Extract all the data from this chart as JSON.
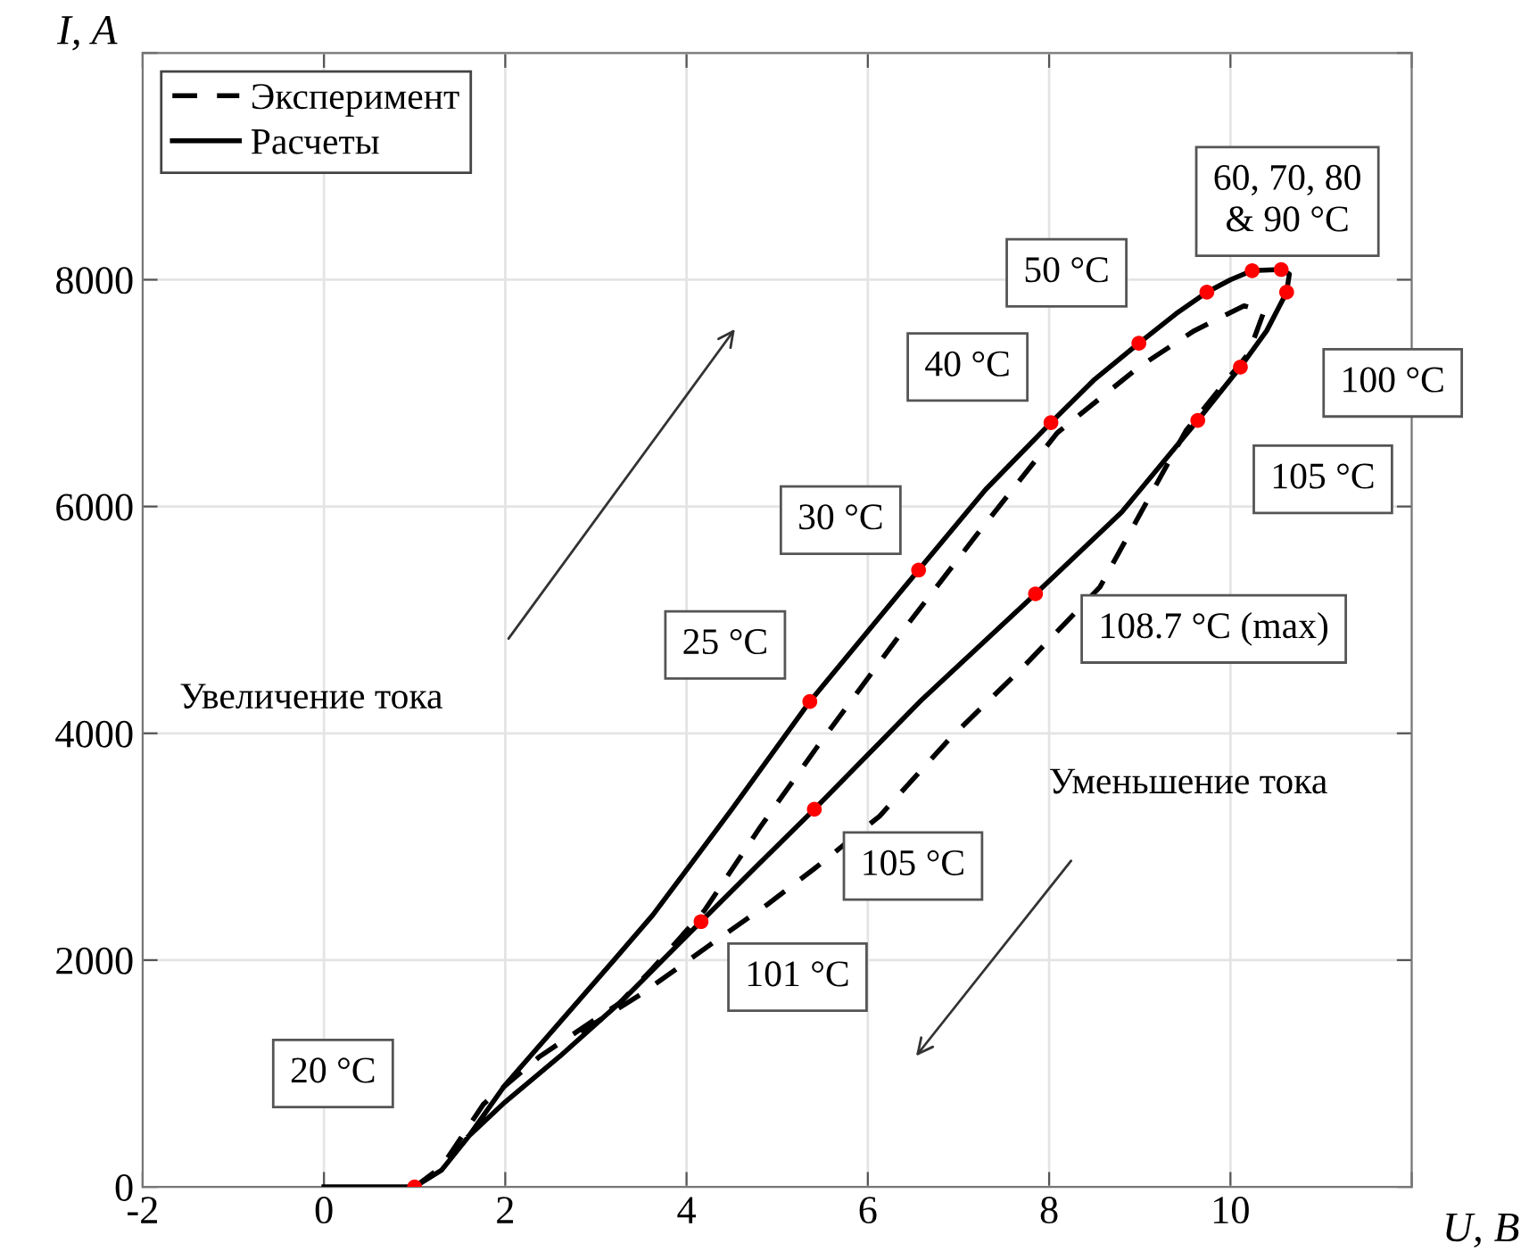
{
  "chart_data": {
    "type": "line",
    "xlabel": "U, B",
    "ylabel": "I, A",
    "xlim": [
      -2,
      12
    ],
    "xticks": [
      -2,
      0,
      2,
      4,
      6,
      8,
      10,
      {
        "value": 12,
        "label": null
      }
    ],
    "ylim": [
      0,
      10000
    ],
    "yticks": [
      0,
      2000,
      4000,
      6000,
      8000,
      {
        "value": 10000,
        "label": null
      }
    ],
    "grid": true,
    "legend": "top left",
    "marker": "none",
    "series": [
      {
        "name": "Эксперимент",
        "line_style": "dashed",
        "color": "#000000",
        "x": [
          1.0,
          1.3,
          1.76,
          2.38,
          3.26,
          3.63,
          4.2,
          4.81,
          5.45,
          6.41,
          7.2,
          8.09,
          8.99,
          9.6,
          10.15,
          10.37,
          10.2,
          9.51,
          8.56,
          7.72,
          6.9,
          6.13,
          5.4,
          4.89,
          4.25,
          3.5,
          2.8
        ],
        "values": [
          0,
          180,
          730,
          1150,
          1620,
          1930,
          2440,
          3170,
          3890,
          4930,
          5750,
          6650,
          7230,
          7550,
          7770,
          7720,
          7350,
          6670,
          5290,
          4590,
          3950,
          3270,
          2800,
          2490,
          2130,
          1700,
          1350
        ]
      },
      {
        "name": "Расчеты",
        "line_style": "solid",
        "color": "#000000",
        "x": [
          0,
          1.0,
          1.3,
          1.6,
          2.0,
          2.6,
          3.2,
          3.63,
          4.5,
          5.36,
          6.0,
          6.56,
          7.3,
          8.02,
          8.5,
          8.99,
          9.4,
          9.74,
          10.0,
          10.24,
          10.56,
          10.65,
          10.62,
          10.4,
          10.11,
          9.64,
          8.8,
          7.85,
          6.6,
          5.41,
          4.8,
          4.16,
          3.3,
          2.6,
          2.0,
          1.6
        ],
        "values": [
          0,
          0,
          150,
          450,
          900,
          1450,
          2000,
          2400,
          3330,
          4280,
          4900,
          5440,
          6150,
          6740,
          7120,
          7440,
          7700,
          7890,
          8000,
          8080,
          8090,
          8050,
          7890,
          7550,
          7230,
          6760,
          5950,
          5230,
          4300,
          3330,
          2850,
          2340,
          1650,
          1150,
          750,
          450
        ]
      },
      {
        "type": "scatter",
        "marker": "circle",
        "color": "#ff0000",
        "x": [
          1.0,
          5.36,
          6.56,
          8.02,
          8.99,
          9.74,
          10.24,
          10.56,
          10.62,
          10.11,
          9.64,
          7.85,
          5.41,
          4.16
        ],
        "values": [
          0,
          4280,
          5440,
          6740,
          7440,
          7890,
          8080,
          8090,
          7890,
          7230,
          6760,
          5230,
          3330,
          2340
        ]
      }
    ],
    "annotations": [
      "20 °C",
      "25 °C",
      "30 °C",
      "40 °C",
      "50 °C",
      "60, 70, 80\n& 90 °C",
      "100 °C",
      "105 °C",
      "108.7 °C (max)",
      "105 °C",
      "101 °C",
      "Увеличение тока",
      "Уменьшение тока"
    ]
  }
}
